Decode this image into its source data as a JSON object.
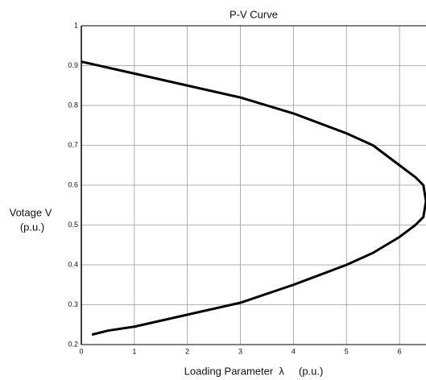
{
  "chart_data": {
    "type": "line",
    "title": "P-V Curve",
    "x_label": "Loading Parameter  λ     (p.u.)",
    "y_label": [
      "Votage V",
      "(p.u.)"
    ],
    "x": [
      0,
      1,
      2,
      3,
      4,
      5,
      5.5,
      6,
      6.3,
      6.45,
      6.5,
      6.45,
      6.3,
      6,
      5.5,
      5,
      4,
      3,
      2,
      1,
      0.5,
      0.2
    ],
    "values": [
      0.91,
      0.88,
      0.85,
      0.82,
      0.78,
      0.73,
      0.7,
      0.65,
      0.62,
      0.6,
      0.56,
      0.52,
      0.5,
      0.47,
      0.43,
      0.4,
      0.35,
      0.305,
      0.275,
      0.245,
      0.235,
      0.225
    ],
    "color": "#000000",
    "xlim": [
      0,
      6.5
    ],
    "xticks": [
      0,
      1,
      2,
      3,
      4,
      5,
      6
    ],
    "ylim": [
      0.2,
      1
    ],
    "yticks": [
      0.2,
      0.3,
      0.4,
      0.5,
      0.6,
      0.7,
      0.8,
      0.9,
      1
    ],
    "grid": true
  }
}
